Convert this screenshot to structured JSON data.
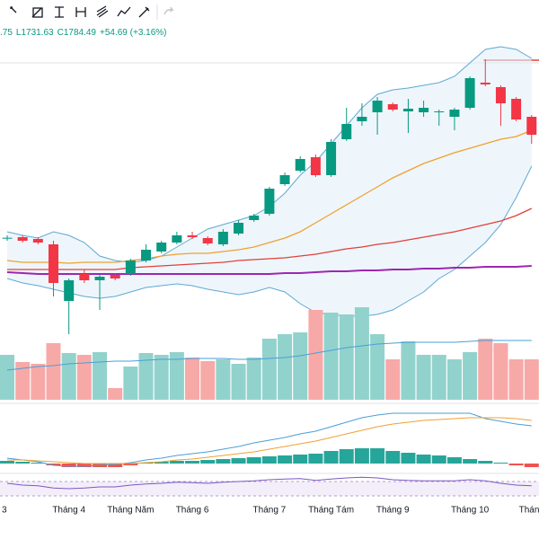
{
  "chart_data": [
    {
      "type": "candlestick",
      "header_texts": [
        ".75",
        "L1731.63",
        "C1784.49",
        "+54.69 (+3.16%)"
      ],
      "header_color": "#089981",
      "categories": [
        "3",
        null,
        null,
        null,
        "Tháng 4",
        null,
        null,
        null,
        "Tháng Năm",
        null,
        null,
        null,
        "Tháng 6",
        null,
        null,
        null,
        null,
        "Tháng 7",
        null,
        null,
        null,
        "Tháng Tám",
        null,
        null,
        null,
        "Tháng 9",
        null,
        null,
        null,
        null,
        "Tháng 10",
        null,
        null,
        null,
        "Tháng"
      ],
      "open": [
        1225,
        1228,
        1222,
        1204,
        1015,
        1105,
        1084,
        1102,
        1105,
        1150,
        1180,
        1210,
        1234,
        1225,
        1204,
        1240,
        1285,
        1306,
        1405,
        1450,
        1495,
        1435,
        1555,
        1615,
        1645,
        1672,
        1648,
        1645,
        1645,
        1630,
        1660,
        1744,
        1729,
        1690,
        1630
      ],
      "high": [
        1234,
        1234,
        1228,
        1216,
        1090,
        1120,
        1102,
        1108,
        1156,
        1204,
        1216,
        1246,
        1246,
        1231,
        1255,
        1285,
        1306,
        1396,
        1444,
        1498,
        1504,
        1555,
        1660,
        1675,
        1696,
        1678,
        1690,
        1684,
        1654,
        1660,
        1765,
        1822,
        1735,
        1696,
        1636
      ],
      "low": [
        1216,
        1210,
        1204,
        1030,
        904,
        1075,
        985,
        1084,
        1099,
        1144,
        1174,
        1204,
        1222,
        1201,
        1198,
        1234,
        1279,
        1300,
        1399,
        1444,
        1429,
        1429,
        1549,
        1600,
        1570,
        1648,
        1576,
        1630,
        1600,
        1585,
        1654,
        1732,
        1600,
        1615,
        1540
      ],
      "close": [
        1226,
        1216,
        1210,
        1075,
        1084,
        1084,
        1096,
        1090,
        1150,
        1186,
        1210,
        1234,
        1228,
        1207,
        1246,
        1276,
        1300,
        1390,
        1435,
        1489,
        1435,
        1546,
        1606,
        1630,
        1684,
        1654,
        1657,
        1660,
        1648,
        1654,
        1759,
        1738,
        1675,
        1621,
        1570
      ],
      "up_color": "#089981",
      "down_color": "#f23645",
      "ylim": [
        880,
        1900
      ],
      "bands": {
        "color": "#5fa8d3",
        "fill": "#e3f0f8",
        "upper": [
          1246,
          1234,
          1225,
          1246,
          1234,
          1210,
          1165,
          1150,
          1144,
          1150,
          1165,
          1195,
          1225,
          1255,
          1270,
          1285,
          1300,
          1330,
          1375,
          1435,
          1480,
          1540,
          1600,
          1660,
          1705,
          1720,
          1726,
          1735,
          1744,
          1765,
          1810,
          1855,
          1864,
          1855,
          1825
        ],
        "lower": [
          1090,
          1075,
          1066,
          1054,
          1042,
          1030,
          1024,
          1030,
          1045,
          1060,
          1066,
          1072,
          1066,
          1054,
          1045,
          1036,
          1045,
          1060,
          1045,
          1006,
          976,
          970,
          964,
          964,
          970,
          985,
          1015,
          1045,
          1090,
          1120,
          1165,
          1210,
          1270,
          1360,
          1465
        ]
      },
      "lines": [
        {
          "color": "#f0a030",
          "values": [
            1150,
            1144,
            1144,
            1144,
            1141,
            1144,
            1144,
            1144,
            1150,
            1156,
            1165,
            1171,
            1174,
            1174,
            1180,
            1186,
            1195,
            1210,
            1225,
            1246,
            1276,
            1306,
            1336,
            1366,
            1396,
            1426,
            1450,
            1474,
            1492,
            1510,
            1525,
            1540,
            1555,
            1564,
            1585
          ]
        },
        {
          "color": "#e0403a",
          "values": [
            1120,
            1120,
            1120,
            1120,
            1120,
            1120,
            1120,
            1120,
            1126,
            1129,
            1132,
            1135,
            1138,
            1141,
            1144,
            1150,
            1153,
            1156,
            1159,
            1165,
            1171,
            1180,
            1189,
            1195,
            1204,
            1210,
            1219,
            1228,
            1237,
            1246,
            1258,
            1270,
            1282,
            1300,
            1324
          ]
        },
        {
          "color": "#9c27b0",
          "values": [
            1111,
            1108,
            1105,
            1105,
            1105,
            1105,
            1105,
            1105,
            1105,
            1105,
            1105,
            1105,
            1105,
            1105,
            1105,
            1105,
            1105,
            1105,
            1108,
            1108,
            1111,
            1114,
            1114,
            1117,
            1117,
            1120,
            1120,
            1123,
            1123,
            1126,
            1126,
            1129,
            1129,
            1129,
            1132
          ]
        }
      ]
    },
    {
      "type": "volume",
      "values": [
        50,
        42,
        40,
        63,
        52,
        50,
        53,
        13,
        37,
        52,
        50,
        53,
        47,
        43,
        45,
        40,
        47,
        68,
        73,
        75,
        100,
        97,
        95,
        103,
        73,
        45,
        65,
        50,
        50,
        45,
        53,
        68,
        63,
        45,
        45
      ],
      "up_color": "#92d2cc",
      "down_color": "#f7a9a7",
      "ylim": [
        0,
        110
      ],
      "ma": {
        "color": "#4a9fd8",
        "values": [
          33,
          35,
          37,
          38,
          40,
          41,
          42,
          43,
          43,
          44,
          45,
          45,
          46,
          46,
          46,
          45,
          45,
          46,
          47,
          49,
          52,
          55,
          58,
          60,
          62,
          63,
          64,
          64,
          64,
          64,
          65,
          66,
          66,
          66,
          66
        ]
      }
    },
    {
      "type": "macd",
      "histogram": {
        "values": [
          3,
          2,
          1,
          -2,
          -4,
          -4,
          -4,
          -4,
          -2,
          1,
          2,
          3,
          3,
          4,
          5,
          6,
          7,
          8,
          9,
          10,
          11,
          14,
          16,
          17,
          17,
          14,
          12,
          10,
          9,
          7,
          5,
          3,
          1,
          -2,
          -4
        ],
        "up_color": "#26a69a",
        "down_color": "#ef5350"
      },
      "lines": [
        {
          "color": "#4a9fd8",
          "values": [
            6,
            4,
            2,
            -2,
            -3,
            -3,
            -2,
            -1,
            1,
            4,
            6,
            9,
            11,
            13,
            16,
            19,
            23,
            26,
            29,
            33,
            36,
            41,
            46,
            51,
            54,
            56,
            56,
            56,
            56,
            56,
            56,
            50,
            47,
            44,
            42
          ]
        },
        {
          "color": "#f0a030",
          "values": [
            4,
            4,
            3,
            2,
            1,
            0,
            0,
            0,
            0,
            1,
            2,
            4,
            5,
            7,
            9,
            11,
            13,
            16,
            19,
            22,
            25,
            29,
            33,
            37,
            41,
            44,
            46,
            48,
            49,
            50,
            51,
            51,
            51,
            50,
            48
          ]
        }
      ],
      "ylim": [
        -10,
        60
      ]
    },
    {
      "type": "line",
      "values": [
        55,
        50,
        48,
        42,
        40,
        42,
        45,
        45,
        50,
        53,
        55,
        58,
        57,
        55,
        58,
        60,
        62,
        65,
        67,
        68,
        63,
        67,
        70,
        72,
        70,
        65,
        63,
        62,
        62,
        62,
        65,
        62,
        55,
        50,
        48
      ],
      "color": "#7e57c2",
      "ylim": [
        0,
        100
      ]
    }
  ]
}
